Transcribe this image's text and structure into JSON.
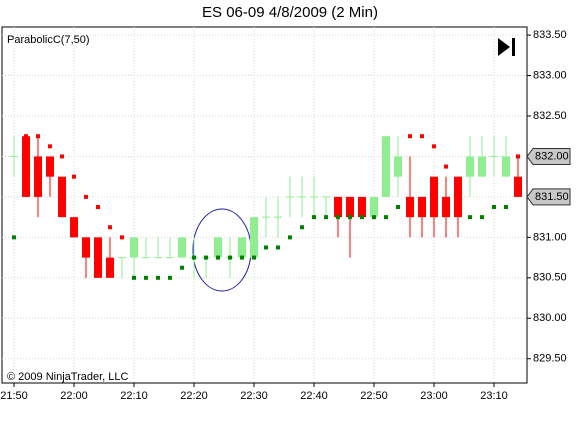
{
  "chart_data": {
    "type": "candlestick",
    "title": "ES 06-09  4/8/2009 (2 Min)",
    "indicator_label": "ParabolicC(7,50)",
    "copyright": "© 2009 NinjaTrader, LLC",
    "categories": [
      "21:50",
      null,
      null,
      null,
      null,
      "22:00",
      null,
      null,
      null,
      null,
      "22:10",
      null,
      null,
      null,
      null,
      "22:20",
      null,
      null,
      null,
      null,
      "22:30",
      null,
      null,
      null,
      null,
      "22:40",
      null,
      null,
      null,
      null,
      "22:50",
      null,
      null,
      null,
      null,
      "23:00",
      null,
      null,
      null,
      null,
      "23:10",
      null,
      null
    ],
    "open": [
      832.0,
      832.25,
      832.0,
      832.0,
      831.75,
      831.25,
      831.0,
      831.0,
      830.75,
      830.75,
      830.75,
      830.75,
      830.75,
      830.75,
      830.75,
      830.75,
      830.75,
      830.75,
      830.75,
      830.75,
      830.75,
      831.25,
      831.25,
      831.5,
      831.5,
      831.5,
      831.5,
      831.5,
      831.5,
      831.5,
      831.25,
      831.5,
      831.75,
      831.5,
      831.5,
      831.75,
      831.5,
      831.75,
      831.75,
      831.75,
      832.0,
      831.75,
      831.75
    ],
    "high": [
      832.25,
      832.25,
      832.25,
      832.0,
      831.75,
      831.25,
      831.0,
      831.0,
      831.0,
      830.75,
      831.0,
      831.0,
      831.0,
      831.0,
      831.0,
      831.0,
      830.75,
      831.0,
      831.0,
      831.0,
      831.25,
      831.5,
      831.5,
      831.75,
      831.75,
      831.75,
      831.5,
      831.5,
      831.5,
      831.5,
      831.5,
      832.25,
      832.25,
      832.0,
      831.5,
      831.75,
      831.75,
      831.75,
      832.25,
      832.25,
      832.25,
      832.25,
      832.0
    ],
    "low": [
      831.75,
      831.5,
      831.25,
      831.5,
      831.25,
      831.0,
      830.5,
      830.5,
      830.5,
      830.5,
      830.5,
      830.75,
      830.75,
      830.75,
      830.75,
      830.5,
      830.5,
      830.75,
      830.5,
      830.75,
      830.75,
      831.0,
      831.0,
      831.25,
      831.25,
      831.25,
      831.25,
      831.0,
      830.75,
      831.25,
      831.25,
      831.5,
      831.5,
      831.0,
      831.0,
      831.0,
      831.0,
      831.0,
      831.5,
      831.75,
      831.75,
      831.75,
      831.5
    ],
    "close": [
      832.0,
      831.5,
      831.5,
      831.75,
      831.25,
      831.0,
      830.75,
      830.5,
      830.5,
      830.75,
      831.0,
      830.75,
      830.75,
      830.75,
      831.0,
      830.75,
      830.75,
      831.0,
      830.75,
      831.0,
      831.25,
      831.25,
      831.25,
      831.5,
      831.5,
      831.5,
      831.5,
      831.25,
      831.25,
      831.25,
      831.5,
      832.25,
      832.0,
      831.25,
      831.25,
      831.25,
      831.25,
      831.25,
      832.0,
      832.0,
      832.0,
      832.0,
      831.5
    ],
    "up_color": "#90ee90",
    "down_color": "#ff0000",
    "sar": {
      "values": [
        831.0,
        832.25,
        832.25,
        832.125,
        832.0,
        831.75,
        831.5,
        831.375,
        831.125,
        831.0,
        830.5,
        830.5,
        830.5,
        830.5,
        830.625,
        830.75,
        830.75,
        830.75,
        830.75,
        830.75,
        830.75,
        830.875,
        830.875,
        831.0,
        831.125,
        831.25,
        831.25,
        831.25,
        831.25,
        831.25,
        831.25,
        831.25,
        831.375,
        832.25,
        832.25,
        832.125,
        831.875,
        831.625,
        831.25,
        831.25,
        831.375,
        831.375,
        832.0
      ],
      "colors": [
        "#008000",
        "#ff0000",
        "#ff0000",
        "#ff0000",
        "#ff0000",
        "#ff0000",
        "#ff0000",
        "#ff0000",
        "#ff0000",
        "#ff0000",
        "#008000",
        "#008000",
        "#008000",
        "#008000",
        "#008000",
        "#008000",
        "#008000",
        "#008000",
        "#008000",
        "#008000",
        "#008000",
        "#008000",
        "#008000",
        "#008000",
        "#008000",
        "#008000",
        "#008000",
        "#008000",
        "#008000",
        "#008000",
        "#008000",
        "#008000",
        "#008000",
        "#ff0000",
        "#ff0000",
        "#ff0000",
        "#ff0000",
        "#ff0000",
        "#008000",
        "#008000",
        "#008000",
        "#008000",
        "#ff0000"
      ]
    },
    "ylim": [
      829.2,
      833.6
    ],
    "yticks": [
      {
        "value": 829.5,
        "label": "829.50"
      },
      {
        "value": 830,
        "label": "830.00"
      },
      {
        "value": 830.5,
        "label": "830.50"
      },
      {
        "value": 831,
        "label": "831.00"
      },
      {
        "value": 831.5,
        "label": "831.50"
      },
      {
        "value": 832,
        "label": "832.00"
      },
      {
        "value": 832.5,
        "label": "832.50"
      },
      {
        "value": 833,
        "label": "833.00"
      },
      {
        "value": 833.5,
        "label": "833.50"
      }
    ],
    "price_markers": [
      {
        "value": 832,
        "label": "832.00"
      },
      {
        "value": 831.5,
        "label": "831.50"
      }
    ],
    "grid": true
  }
}
